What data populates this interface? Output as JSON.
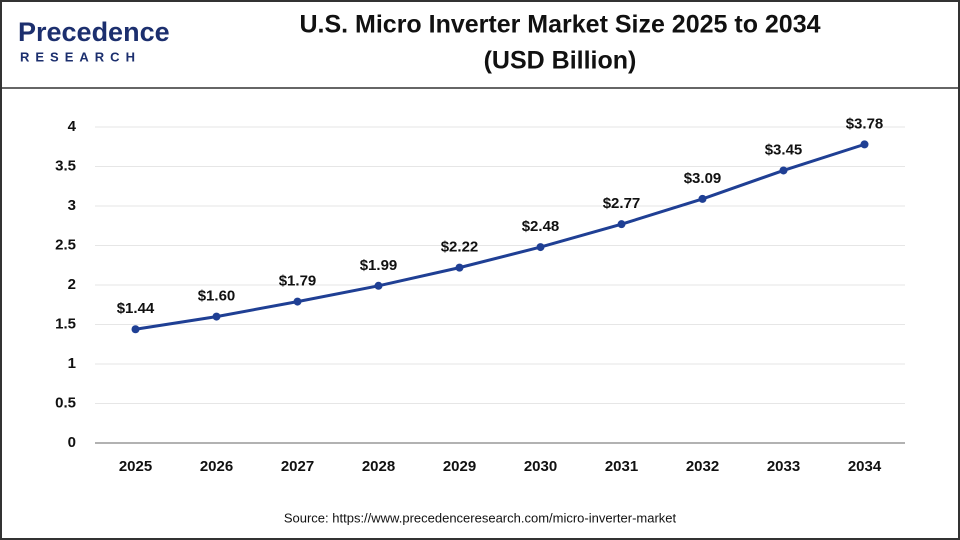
{
  "logo": {
    "name": "Precedence",
    "tagline": "RESEARCH"
  },
  "source": "Source: https://www.precedenceresearch.com/micro-inverter-market",
  "chart_data": {
    "type": "line",
    "title": "U.S. Micro Inverter Market Size 2025 to 2034",
    "subtitle": "(USD Billion)",
    "categories": [
      "2025",
      "2026",
      "2027",
      "2028",
      "2029",
      "2030",
      "2031",
      "2032",
      "2033",
      "2034"
    ],
    "values": [
      1.44,
      1.6,
      1.79,
      1.99,
      2.22,
      2.48,
      2.77,
      3.09,
      3.45,
      3.78
    ],
    "value_labels": [
      "$1.44",
      "$1.60",
      "$1.79",
      "$1.99",
      "$2.22",
      "$2.48",
      "$2.77",
      "$3.09",
      "$3.45",
      "$3.78"
    ],
    "color": "#1f3f94",
    "ylim": [
      0,
      4
    ],
    "yticks": [
      0,
      0.5,
      1,
      1.5,
      2,
      2.5,
      3,
      3.5,
      4
    ],
    "grid": true
  }
}
